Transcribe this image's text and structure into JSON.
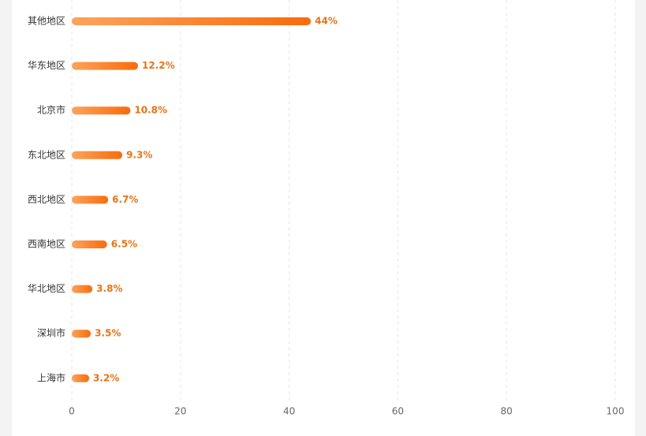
{
  "chart_data": {
    "type": "bar",
    "orientation": "horizontal",
    "categories": [
      "其他地区",
      "华东地区",
      "北京市",
      "东北地区",
      "西北地区",
      "西南地区",
      "华北地区",
      "深圳市",
      "上海市"
    ],
    "values": [
      44,
      12.2,
      10.8,
      9.3,
      6.7,
      6.5,
      3.8,
      3.5,
      3.2
    ],
    "value_labels": [
      "44%",
      "12.2%",
      "10.8%",
      "9.3%",
      "6.7%",
      "6.5%",
      "3.8%",
      "3.5%",
      "3.2%"
    ],
    "gradient": [
      "#fca35c",
      "#f96b0b"
    ],
    "label_color": "#e87316",
    "xlim": [
      0,
      100
    ],
    "xticks": [
      0,
      20,
      40,
      60,
      80,
      100
    ],
    "grid": true
  }
}
